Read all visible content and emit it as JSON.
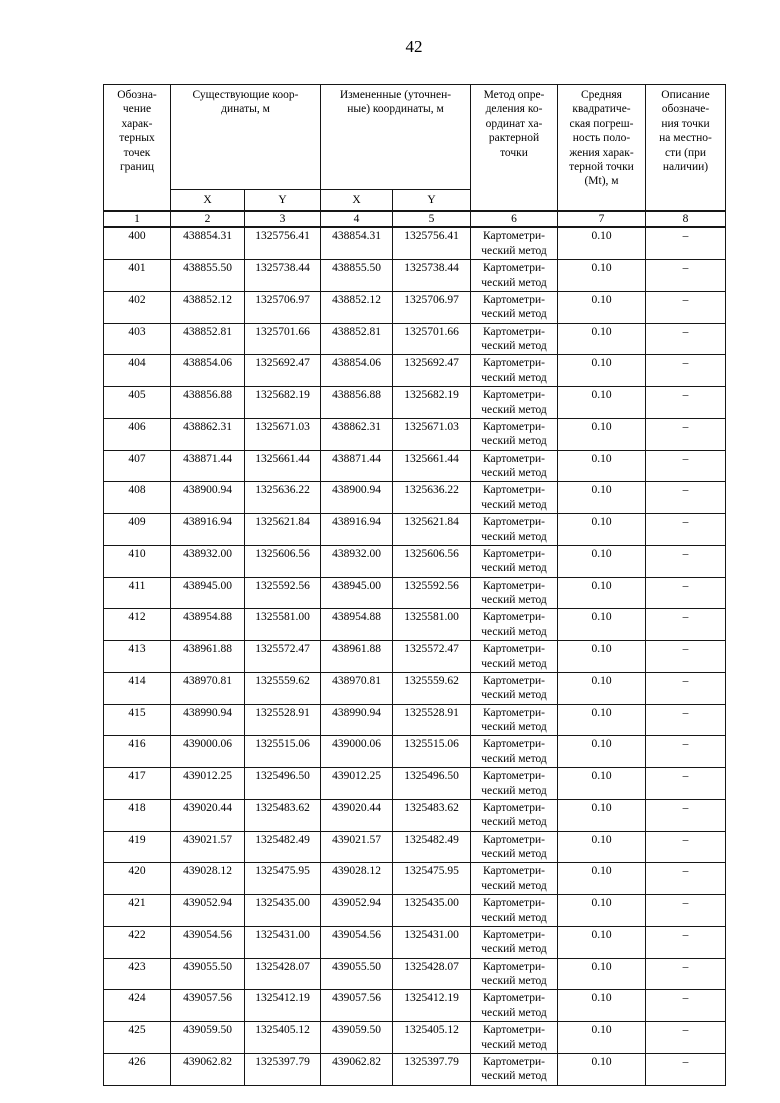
{
  "page": {
    "number": "42"
  },
  "table": {
    "headers": {
      "point_label": "Обозна-\nчение\nхарак-\nтерных\nточек\nграниц",
      "existing_coords": "Существующие коор-\nдинаты, м",
      "changed_coords": "Измененные (уточнен-\nные) координаты, м",
      "method": "Метод опре-\nделения ко-\nординат ха-\nрактерной\nточки",
      "error": "Средняя\nквадратиче-\nская погреш-\nность поло-\nжения харак-\nтерной точки\n(Mt), м",
      "description": "Описание\nобозначе-\nния точки\nна местно-\nсти (при\nналичии)",
      "x": "X",
      "y": "Y"
    },
    "column_numbers": {
      "c1": "1",
      "c2": "2",
      "c3": "3",
      "c4": "4",
      "c5": "5",
      "c6": "6",
      "c7": "7",
      "c8": "8"
    },
    "method_text": "Картометри-\nческий метод",
    "rows": [
      {
        "point": "400",
        "x": "438854.31",
        "y": "1325756.41",
        "mt": "0.10",
        "desc": "–"
      },
      {
        "point": "401",
        "x": "438855.50",
        "y": "1325738.44",
        "mt": "0.10",
        "desc": "–"
      },
      {
        "point": "402",
        "x": "438852.12",
        "y": "1325706.97",
        "mt": "0.10",
        "desc": "–"
      },
      {
        "point": "403",
        "x": "438852.81",
        "y": "1325701.66",
        "mt": "0.10",
        "desc": "–"
      },
      {
        "point": "404",
        "x": "438854.06",
        "y": "1325692.47",
        "mt": "0.10",
        "desc": "–"
      },
      {
        "point": "405",
        "x": "438856.88",
        "y": "1325682.19",
        "mt": "0.10",
        "desc": "–"
      },
      {
        "point": "406",
        "x": "438862.31",
        "y": "1325671.03",
        "mt": "0.10",
        "desc": "–"
      },
      {
        "point": "407",
        "x": "438871.44",
        "y": "1325661.44",
        "mt": "0.10",
        "desc": "–"
      },
      {
        "point": "408",
        "x": "438900.94",
        "y": "1325636.22",
        "mt": "0.10",
        "desc": "–"
      },
      {
        "point": "409",
        "x": "438916.94",
        "y": "1325621.84",
        "mt": "0.10",
        "desc": "–"
      },
      {
        "point": "410",
        "x": "438932.00",
        "y": "1325606.56",
        "mt": "0.10",
        "desc": "–"
      },
      {
        "point": "411",
        "x": "438945.00",
        "y": "1325592.56",
        "mt": "0.10",
        "desc": "–"
      },
      {
        "point": "412",
        "x": "438954.88",
        "y": "1325581.00",
        "mt": "0.10",
        "desc": "–"
      },
      {
        "point": "413",
        "x": "438961.88",
        "y": "1325572.47",
        "mt": "0.10",
        "desc": "–"
      },
      {
        "point": "414",
        "x": "438970.81",
        "y": "1325559.62",
        "mt": "0.10",
        "desc": "–"
      },
      {
        "point": "415",
        "x": "438990.94",
        "y": "1325528.91",
        "mt": "0.10",
        "desc": "–"
      },
      {
        "point": "416",
        "x": "439000.06",
        "y": "1325515.06",
        "mt": "0.10",
        "desc": "–"
      },
      {
        "point": "417",
        "x": "439012.25",
        "y": "1325496.50",
        "mt": "0.10",
        "desc": "–"
      },
      {
        "point": "418",
        "x": "439020.44",
        "y": "1325483.62",
        "mt": "0.10",
        "desc": "–"
      },
      {
        "point": "419",
        "x": "439021.57",
        "y": "1325482.49",
        "mt": "0.10",
        "desc": "–"
      },
      {
        "point": "420",
        "x": "439028.12",
        "y": "1325475.95",
        "mt": "0.10",
        "desc": "–"
      },
      {
        "point": "421",
        "x": "439052.94",
        "y": "1325435.00",
        "mt": "0.10",
        "desc": "–"
      },
      {
        "point": "422",
        "x": "439054.56",
        "y": "1325431.00",
        "mt": "0.10",
        "desc": "–"
      },
      {
        "point": "423",
        "x": "439055.50",
        "y": "1325428.07",
        "mt": "0.10",
        "desc": "–"
      },
      {
        "point": "424",
        "x": "439057.56",
        "y": "1325412.19",
        "mt": "0.10",
        "desc": "–"
      },
      {
        "point": "425",
        "x": "439059.50",
        "y": "1325405.12",
        "mt": "0.10",
        "desc": "–"
      },
      {
        "point": "426",
        "x": "439062.82",
        "y": "1325397.79",
        "mt": "0.10",
        "desc": "–"
      }
    ]
  }
}
